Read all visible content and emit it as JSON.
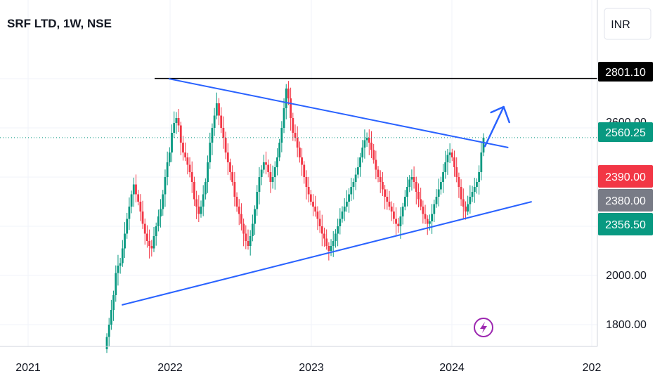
{
  "header": {
    "title": "SRF LTD, 1W, NSE",
    "currency": "INR"
  },
  "colors": {
    "up": "#089981",
    "down": "#f23645",
    "trendline": "#2962ff",
    "resistance": "#000000",
    "grid": "#f0f3fa"
  },
  "icons": {
    "flash": "lightning-icon"
  },
  "chart_data": {
    "type": "candlestick",
    "title": "SRF LTD, 1W, NSE",
    "xlabel": "",
    "ylabel": "",
    "grid": true,
    "legend": "none",
    "x_ticks": [
      "2021",
      "2022",
      "2023",
      "2024",
      "202"
    ],
    "y_ticks": [
      "1800.00",
      "2000.00",
      "2600.00"
    ],
    "ylim": [
      1670,
      2940
    ],
    "price_labels": [
      {
        "name": "resistance",
        "text": "2801.10",
        "value": 2801.1,
        "color": "#000000"
      },
      {
        "name": "last",
        "text": "2560.25",
        "value": 2560.25,
        "color": "#089981"
      },
      {
        "name": "high",
        "text": "2390.00",
        "value": 2390.0,
        "color": "#f23645"
      },
      {
        "name": "mid",
        "text": "2380.00",
        "value": 2380.0,
        "color": "#787b86"
      },
      {
        "name": "low",
        "text": "2356.50",
        "value": 2356.5,
        "color": "#089981"
      }
    ],
    "resistance": {
      "value": 2801.1,
      "from": "2021-12",
      "to": "2025-03"
    },
    "trendlines": [
      {
        "name": "upper",
        "from": {
          "date": "2022-01",
          "value": 2800
        },
        "to": {
          "date": "2024-06",
          "value": 2520
        }
      },
      {
        "name": "lower",
        "from": {
          "date": "2021-09",
          "value": 1880
        },
        "to": {
          "date": "2024-08",
          "value": 2300
        }
      }
    ],
    "arrow": {
      "from": {
        "date": "2024-04",
        "value": 2525
      },
      "to": {
        "date": "2024-05",
        "value": 2600
      }
    },
    "weekly_close": [
      1750,
      1800,
      1860,
      1920,
      2010,
      2040,
      2050,
      2110,
      2170,
      2230,
      2280,
      2330,
      2370,
      2330,
      2300,
      2260,
      2210,
      2170,
      2140,
      2120,
      2110,
      2160,
      2200,
      2240,
      2270,
      2330,
      2400,
      2460,
      2500,
      2580,
      2620,
      2640,
      2610,
      2540,
      2500,
      2480,
      2450,
      2420,
      2380,
      2310,
      2280,
      2250,
      2280,
      2330,
      2380,
      2460,
      2540,
      2600,
      2650,
      2700,
      2650,
      2600,
      2560,
      2500,
      2460,
      2420,
      2380,
      2320,
      2280,
      2250,
      2210,
      2170,
      2140,
      2120,
      2160,
      2210,
      2270,
      2340,
      2400,
      2430,
      2460,
      2450,
      2420,
      2380,
      2400,
      2440,
      2480,
      2540,
      2600,
      2680,
      2760,
      2720,
      2640,
      2580,
      2560,
      2520,
      2480,
      2450,
      2400,
      2360,
      2330,
      2300,
      2280,
      2260,
      2230,
      2200,
      2170,
      2150,
      2120,
      2100,
      2120,
      2140,
      2170,
      2200,
      2230,
      2260,
      2280,
      2300,
      2330,
      2360,
      2380,
      2410,
      2440,
      2480,
      2520,
      2550,
      2560,
      2540,
      2510,
      2470,
      2430,
      2400,
      2380,
      2350,
      2320,
      2300,
      2280,
      2260,
      2230,
      2210,
      2200,
      2240,
      2280,
      2320,
      2360,
      2390,
      2400,
      2380,
      2340,
      2310,
      2280,
      2250,
      2230,
      2210,
      2220,
      2250,
      2290,
      2320,
      2350,
      2380,
      2420,
      2460,
      2490,
      2500,
      2480,
      2440,
      2400,
      2360,
      2310,
      2280,
      2260,
      2290,
      2320,
      2340,
      2360,
      2380,
      2420,
      2500,
      2560
    ]
  }
}
